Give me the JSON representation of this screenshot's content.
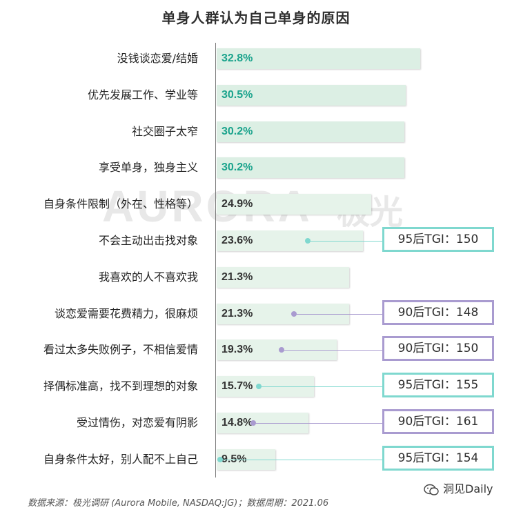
{
  "title": "单身人群认为自己单身的原因",
  "chart_data": {
    "type": "bar",
    "orientation": "horizontal",
    "title": "单身人群认为自己单身的原因",
    "categories": [
      "没钱谈恋爱/结婚",
      "优先发展工作、学业等",
      "社交圈子太窄",
      "享受单身，独身主义",
      "自身条件限制（外在、性格等）",
      "不会主动出击找对象",
      "我喜欢的人不喜欢我",
      "谈恋爱需要花费精力，很麻烦",
      "看过太多失败例子，不相信爱情",
      "择偶标准高，找不到理想的对象",
      "受过情伤，对恋爱有阴影",
      "自身条件太好，别人配不上自己"
    ],
    "values": [
      32.8,
      30.5,
      30.2,
      30.2,
      24.9,
      23.6,
      21.3,
      21.3,
      19.3,
      15.7,
      14.8,
      9.5
    ],
    "value_labels": [
      "32.8%",
      "30.5%",
      "30.2%",
      "30.2%",
      "24.9%",
      "23.6%",
      "21.3%",
      "21.3%",
      "19.3%",
      "15.7%",
      "14.8%",
      "9.5%"
    ],
    "highlight_top": 4,
    "xlim": [
      0,
      40
    ],
    "annotations": [
      {
        "row": 5,
        "text": "95后TGI：150",
        "group": "95"
      },
      {
        "row": 7,
        "text": "90后TGI：148",
        "group": "90"
      },
      {
        "row": 8,
        "text": "90后TGI：150",
        "group": "90"
      },
      {
        "row": 9,
        "text": "95后TGI：155",
        "group": "95"
      },
      {
        "row": 10,
        "text": "90后TGI：161",
        "group": "90"
      },
      {
        "row": 11,
        "text": "95后TGI：154",
        "group": "95"
      }
    ],
    "legend": "none",
    "grid": false
  },
  "colors": {
    "bar_highlight": "#dcefe4",
    "bar_normal": "#e6f3ea",
    "value_highlight": "#1aa38c",
    "value_normal": "#333333",
    "tgi_95": "#7fd8cf",
    "tgi_90": "#a99bd0"
  },
  "watermark": {
    "latin": "AURORA",
    "cn": "极光"
  },
  "source": "数据来源：极光调研 (Aurora Mobile, NASDAQ:JG)；数据周期：2021.06",
  "brand": {
    "icon": "wechat-icon",
    "label": "洞见Daily"
  }
}
